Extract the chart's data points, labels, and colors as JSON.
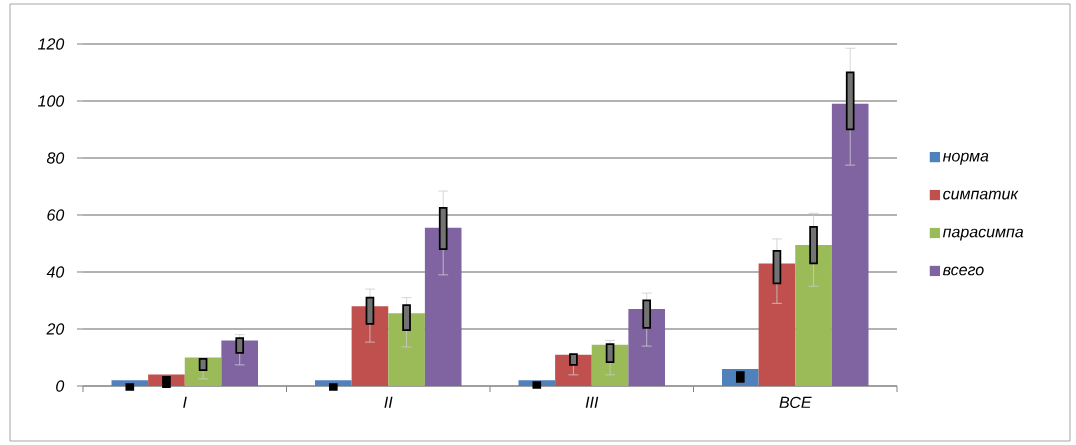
{
  "chart_data": {
    "type": "bar",
    "categories": [
      "I",
      "II",
      "III",
      "ВСЕ"
    ],
    "ylim": [
      0,
      120
    ],
    "yticks": [
      0,
      20,
      40,
      60,
      80,
      100,
      120
    ],
    "grid": "y",
    "legend": "right",
    "series": [
      {
        "name": "норма",
        "color": "#4f81bd",
        "values": [
          2,
          2,
          2,
          6
        ],
        "errors": [
          null,
          null,
          null,
          null
        ]
      },
      {
        "name": "симпатик",
        "color": "#c0504d",
        "values": [
          4,
          28,
          11,
          43
        ],
        "errors": [
          null,
          [
            15.4,
            34
          ],
          [
            3.9,
            11
          ],
          [
            29,
            51.6
          ]
        ]
      },
      {
        "name": "парасимпа",
        "color": "#9bbb59",
        "values": [
          10,
          25.5,
          14.5,
          49.5
        ],
        "errors": [
          [
            2.5,
            10
          ],
          [
            13.7,
            31
          ],
          [
            3.9,
            16
          ],
          [
            35,
            60.6
          ]
        ]
      },
      {
        "name": "всего",
        "color": "#8064a2",
        "values": [
          16,
          55.5,
          27,
          99
        ],
        "errors": [
          [
            7.4,
            18
          ],
          [
            39,
            68.4
          ],
          [
            14,
            32.6
          ],
          [
            77.5,
            118.5
          ]
        ]
      },
      {
        "type": "candlestick",
        "color": "#000000",
        "ohlc": [
          [
            0.7,
            0.7,
            -1.4,
            -1.4
          ],
          [
            0.7,
            0.7,
            -1.4,
            -1.4
          ],
          [
            1.4,
            1.4,
            -0.7,
            -0.7
          ],
          [
            4.9,
            4.9,
            1.4,
            1.4
          ]
        ]
      },
      {
        "type": "candlestick",
        "color": "#000000",
        "ohlc": [
          [
            3.2,
            3.2,
            -0.4,
            -0.4
          ],
          [
            21.8,
            31,
            21.8,
            31
          ],
          [
            7.4,
            11.2,
            7.4,
            11.2
          ],
          [
            36,
            47.4,
            36,
            47.4
          ]
        ]
      },
      {
        "type": "candlestick",
        "color": "#000000",
        "ohlc": [
          [
            5.6,
            9.5,
            5.6,
            9.5
          ],
          [
            19.6,
            28.4,
            19.6,
            28.4
          ],
          [
            8.4,
            14.7,
            8.4,
            14.7
          ],
          [
            43,
            55.8,
            43,
            55.8
          ]
        ]
      },
      {
        "type": "candlestick",
        "color": "#000000",
        "ohlc": [
          [
            11.6,
            16.8,
            11.6,
            16.8
          ],
          [
            48,
            62.5,
            48,
            62.5
          ],
          [
            20.4,
            30,
            20.4,
            30
          ],
          [
            90,
            110,
            90,
            110
          ]
        ]
      }
    ]
  }
}
